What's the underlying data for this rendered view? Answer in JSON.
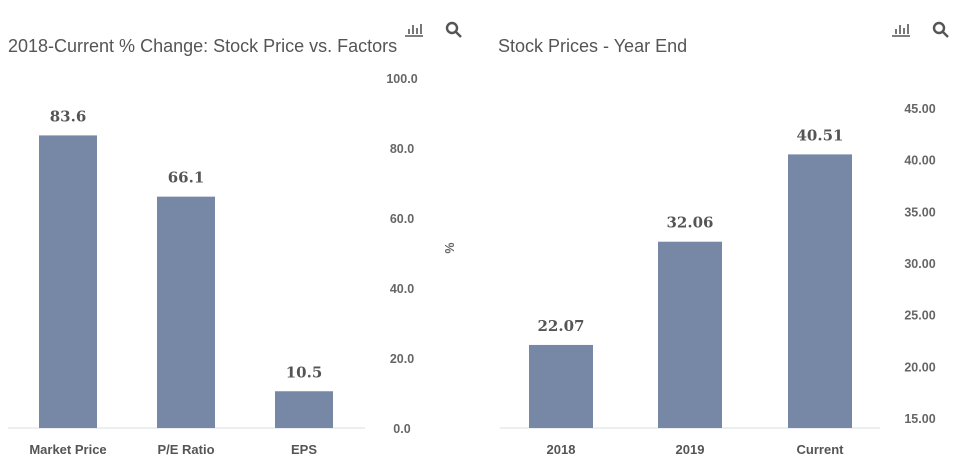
{
  "chart_data": [
    {
      "type": "bar",
      "title": "2018-Current % Change: Stock Price vs. Factors",
      "categories": [
        "Market Price",
        "P/E Ratio",
        "EPS"
      ],
      "values": [
        83.6,
        66.1,
        10.5
      ],
      "data_labels": [
        "83.6",
        "66.1",
        "10.5"
      ],
      "ylabel": "%",
      "ylim": [
        0,
        100
      ],
      "yticks": [
        "0.0",
        "20.0",
        "40.0",
        "60.0",
        "80.0",
        "100.0"
      ],
      "yaxis_position": "right",
      "grid": false,
      "bar_color": "#7788a6"
    },
    {
      "type": "bar",
      "title": "Stock Prices - Year End",
      "categories": [
        "2018",
        "2019",
        "Current"
      ],
      "values": [
        22.07,
        32.06,
        40.51
      ],
      "data_labels": [
        "22.07",
        "32.06",
        "40.51"
      ],
      "ylabel": "",
      "ylim": [
        14,
        45
      ],
      "yticks": [
        "15.00",
        "20.00",
        "25.00",
        "30.00",
        "35.00",
        "40.00",
        "45.00"
      ],
      "yaxis_position": "right",
      "grid": false,
      "bar_color": "#7788a6"
    }
  ],
  "icons": {
    "chart": "bar-chart-icon",
    "search": "search-icon"
  }
}
